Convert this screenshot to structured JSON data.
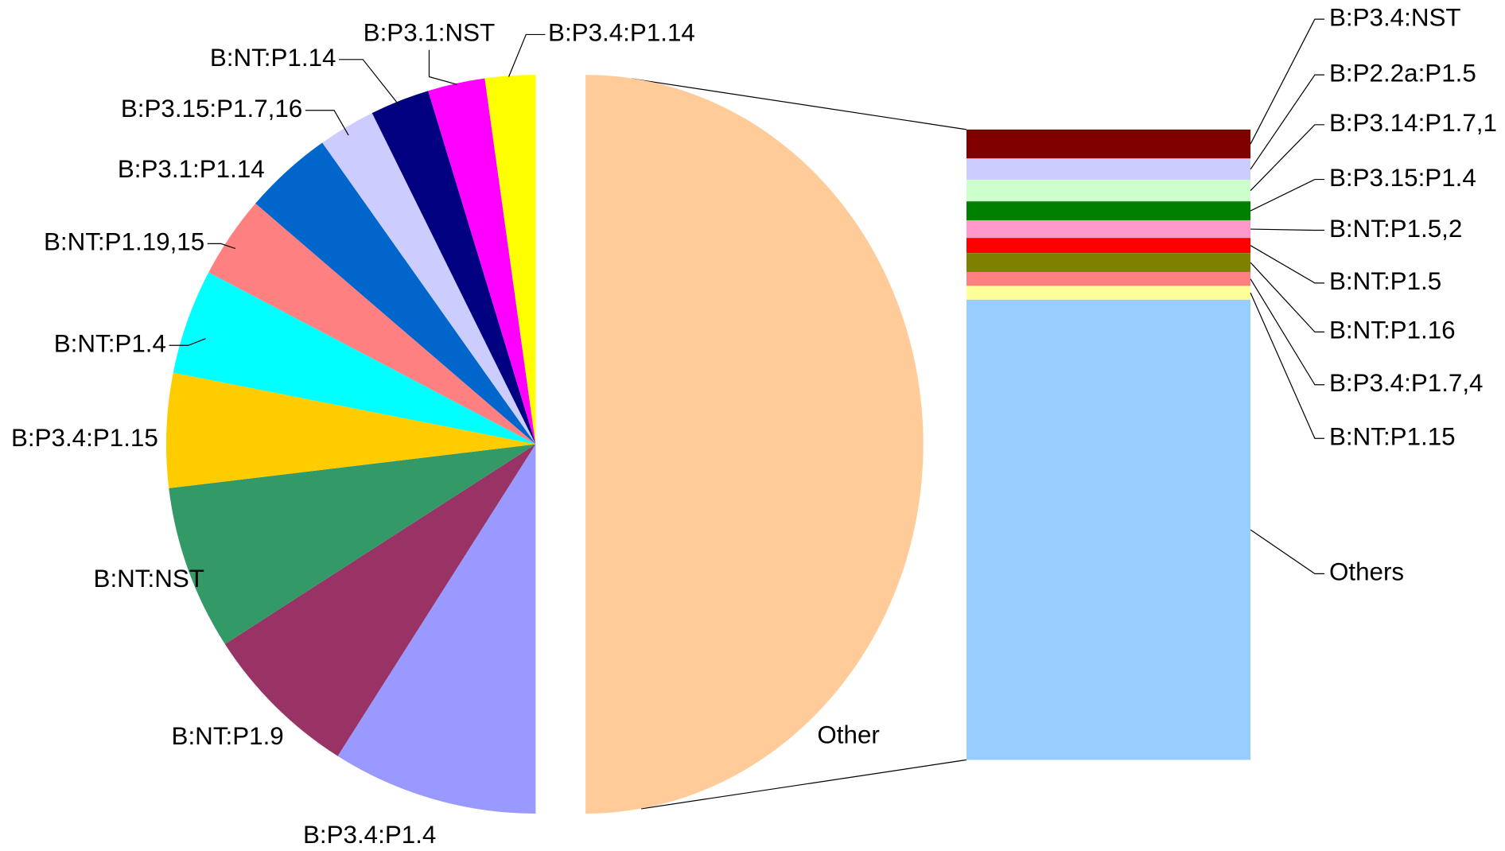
{
  "chart_data": {
    "type": "pie",
    "categories": [
      "Other",
      "B:P3.4:P1.4",
      "B:NT:P1.9",
      "B:NT:NST",
      "B:P3.4:P1.15",
      "B:NT:P1.4",
      "B:NT:P1.19,15",
      "B:P3.1:P1.14",
      "B:P3.15:P1.7,16",
      "B:NT:P1.14",
      "B:P3.1:NST",
      "B:P3.4:P1.14"
    ],
    "values": [
      50,
      9.0,
      6.9,
      7.2,
      5.0,
      4.6,
      3.6,
      3.9,
      2.5,
      2.6,
      2.5,
      2.2
    ],
    "colors": [
      "#FFCC99",
      "#9999FF",
      "#993366",
      "#339966",
      "#FFCC00",
      "#00FFFF",
      "#FF8080",
      "#0066CC",
      "#CCCCFF",
      "#000080",
      "#FF00FF",
      "#FFFF00"
    ],
    "breakdown": {
      "categories": [
        "B:P3.4:NST",
        "B:P2.2a:P1.5",
        "B:P3.14:P1.7,1",
        "B:P3.15:P1.4",
        "B:NT:P1.5,2",
        "B:NT:P1.5",
        "B:NT:P1.16",
        "B:P3.4:P1.7,4",
        "B:NT:P1.15",
        "Others"
      ],
      "values": [
        2.3,
        1.7,
        1.7,
        1.5,
        1.4,
        1.2,
        1.5,
        1.1,
        1.1,
        36.5
      ],
      "colors": [
        "#800000",
        "#CCCCFF",
        "#CCFFCC",
        "#008000",
        "#FF99CC",
        "#FF0000",
        "#808000",
        "#FF8080",
        "#FFFF99",
        "#99CCFF"
      ]
    }
  }
}
